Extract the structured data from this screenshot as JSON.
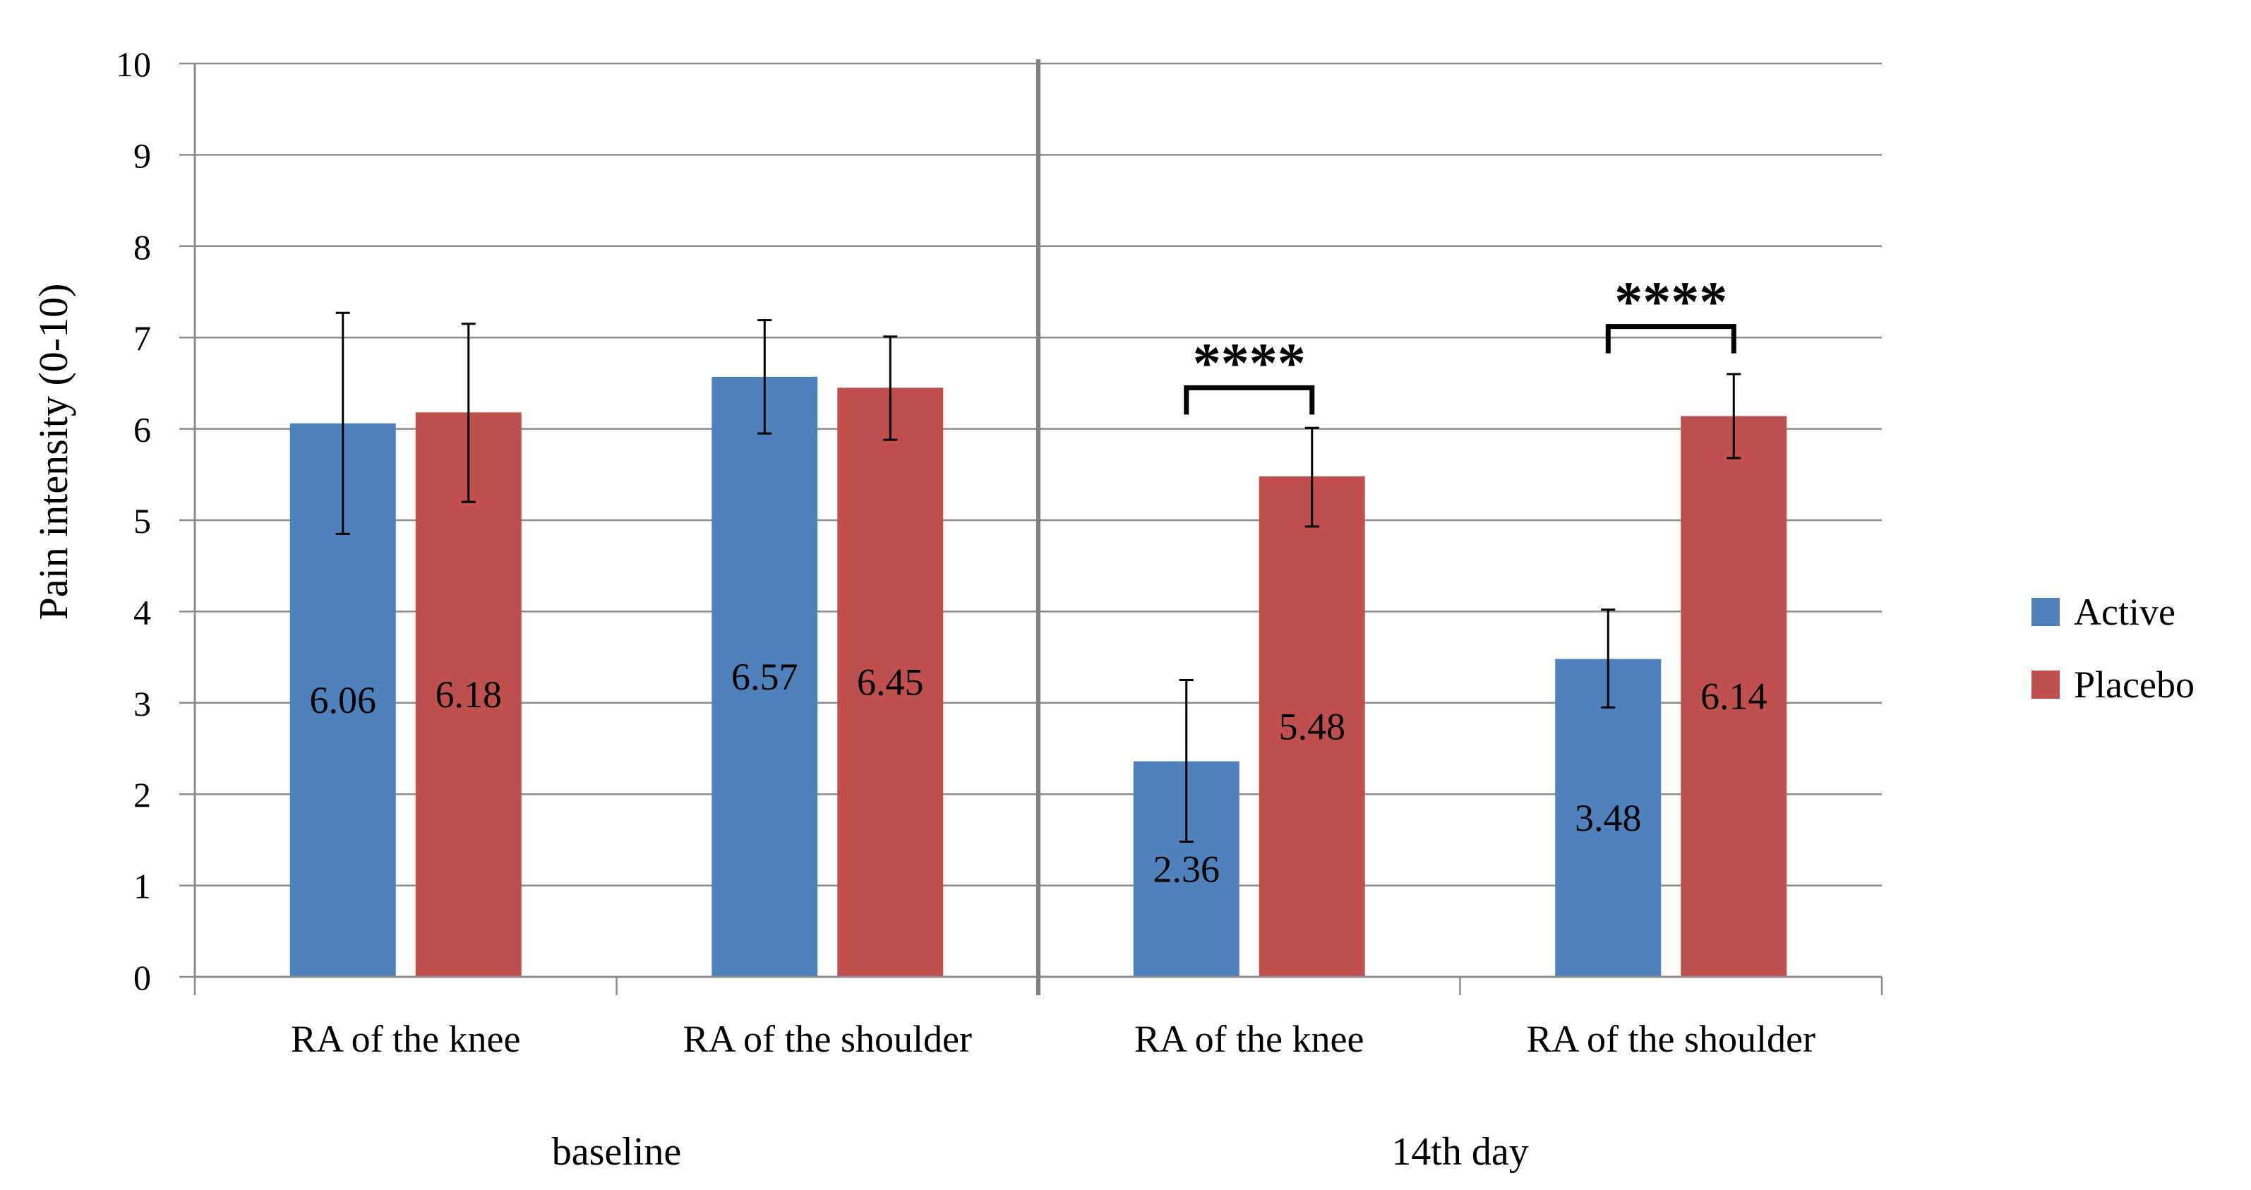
{
  "chart_data": {
    "type": "bar",
    "ylabel": "Pain intensity (0-10)",
    "ylim": [
      0,
      10
    ],
    "yticks": [
      "0",
      "1",
      "2",
      "3",
      "4",
      "5",
      "6",
      "7",
      "8",
      "9",
      "10"
    ],
    "grid": true,
    "legend_position": "right",
    "groups": [
      {
        "label": "baseline",
        "categories": [
          "RA of the knee",
          "RA of the shoulder"
        ]
      },
      {
        "label": "14th day",
        "categories": [
          "RA of the knee",
          "RA of the shoulder"
        ]
      }
    ],
    "series": [
      {
        "name": "Active",
        "color": "#4F81BD",
        "values": [
          6.06,
          6.57,
          2.36,
          3.48
        ],
        "labels": [
          "6.06",
          "6.57",
          "2.36",
          "3.48"
        ],
        "error_low": [
          4.85,
          5.95,
          1.48,
          2.95
        ],
        "error_high": [
          7.27,
          7.19,
          3.25,
          4.02
        ]
      },
      {
        "name": "Placebo",
        "color": "#C0504D",
        "values": [
          6.18,
          6.45,
          5.48,
          6.14
        ],
        "labels": [
          "6.18",
          "6.45",
          "5.48",
          "6.14"
        ],
        "error_low": [
          5.2,
          5.88,
          4.93,
          5.68
        ],
        "error_high": [
          7.15,
          7.01,
          6.01,
          6.6
        ]
      }
    ],
    "annotations": [
      {
        "text": "****",
        "category_index": 2,
        "bracket_at": 6.45
      },
      {
        "text": "****",
        "category_index": 3,
        "bracket_at": 7.12
      }
    ]
  }
}
